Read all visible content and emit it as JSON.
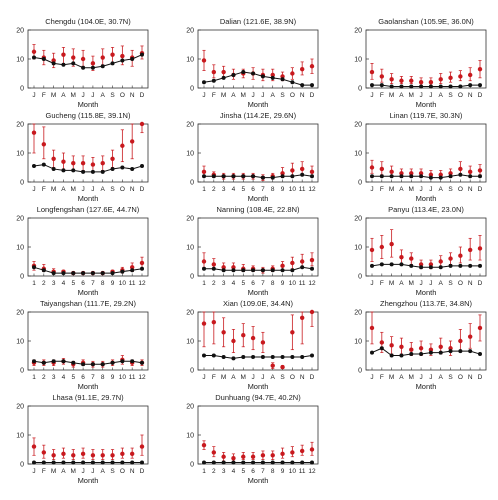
{
  "colors": {
    "red": "#c8191e",
    "black": "#111111",
    "axis": "#333333"
  },
  "chart_data": [
    {
      "type": "line",
      "title": "Chengdu (104.0E, 30.7N)",
      "xlabel": "Month",
      "ylabel": "",
      "ylim": [
        0,
        20
      ],
      "categories": [
        "J",
        "F",
        "M",
        "A",
        "M",
        "J",
        "J",
        "A",
        "S",
        "O",
        "N",
        "D"
      ],
      "series": [
        {
          "color": "#c8191e",
          "values": [
            12.5,
            10.5,
            9.5,
            11.5,
            10.5,
            10,
            8.5,
            10.5,
            11.5,
            11,
            10.5,
            12
          ],
          "err_low": [
            10,
            8,
            7,
            8.5,
            7.5,
            7.5,
            6,
            8,
            8.5,
            8,
            7.5,
            10
          ],
          "err_high": [
            15,
            13,
            12,
            14,
            13.5,
            13,
            11,
            13.5,
            14,
            14.5,
            13,
            14.5
          ]
        },
        {
          "color": "#111111",
          "values": [
            10.5,
            10,
            8.5,
            8,
            8.5,
            7,
            7,
            7.5,
            8.5,
            9.5,
            10,
            11.5
          ]
        }
      ]
    },
    {
      "type": "line",
      "title": "Dalian (121.6E, 38.9N)",
      "xlabel": "Month",
      "ylabel": "",
      "ylim": [
        0,
        20
      ],
      "categories": [
        "J",
        "F",
        "M",
        "A",
        "M",
        "J",
        "J",
        "A",
        "S",
        "O",
        "N",
        "D"
      ],
      "series": [
        {
          "color": "#c8191e",
          "values": [
            9.5,
            5.5,
            5.5,
            4.5,
            5,
            5,
            4.5,
            4.5,
            4,
            5,
            6.5,
            7.5
          ],
          "err_low": [
            6,
            3.5,
            3.5,
            3,
            3.5,
            3,
            2.5,
            2.5,
            2.5,
            3,
            4.5,
            5
          ],
          "err_high": [
            13,
            8,
            7.5,
            6.5,
            6.5,
            7,
            6.5,
            6.5,
            5.5,
            7,
            9,
            10
          ]
        },
        {
          "color": "#111111",
          "values": [
            2,
            2.5,
            3.5,
            4.5,
            5.5,
            5,
            4,
            3.5,
            3,
            2,
            1,
            1
          ]
        }
      ]
    },
    {
      "type": "line",
      "title": "Gaolanshan (105.9E, 36.0N)",
      "xlabel": "Month",
      "ylabel": "",
      "ylim": [
        0,
        20
      ],
      "categories": [
        "J",
        "F",
        "M",
        "A",
        "M",
        "J",
        "J",
        "A",
        "S",
        "O",
        "N",
        "D"
      ],
      "series": [
        {
          "color": "#c8191e",
          "values": [
            5.5,
            4,
            3,
            2.5,
            2.5,
            2,
            2,
            3,
            3.5,
            4,
            4.5,
            6.5
          ],
          "err_low": [
            3,
            2,
            1.5,
            1.5,
            1.5,
            1,
            1,
            1.5,
            2,
            2.5,
            2.5,
            3.5
          ],
          "err_high": [
            8.5,
            6.5,
            5,
            4,
            4,
            3.5,
            3.5,
            5,
            5.5,
            6,
            7,
            9.5
          ]
        },
        {
          "color": "#111111",
          "values": [
            1,
            1,
            0.5,
            0.5,
            0.5,
            0.5,
            0.5,
            0.5,
            0.5,
            0.5,
            1,
            1
          ]
        }
      ]
    },
    {
      "type": "line",
      "title": "Gucheng (115.8E, 39.1N)",
      "xlabel": "Month",
      "ylabel": "",
      "ylim": [
        0,
        20
      ],
      "categories": [
        "J",
        "F",
        "M",
        "A",
        "M",
        "J",
        "J",
        "A",
        "S",
        "O",
        "N",
        "D"
      ],
      "series": [
        {
          "color": "#c8191e",
          "values": [
            17,
            13,
            8,
            7,
            6.5,
            6.5,
            6,
            6.5,
            8,
            12.5,
            14,
            21
          ],
          "err_low": [
            10,
            8,
            5,
            4.5,
            4,
            4,
            3.5,
            4,
            5,
            7,
            8,
            17
          ],
          "err_high": [
            24,
            19,
            11,
            10,
            9,
            9,
            8.5,
            9,
            11,
            18,
            20,
            25
          ]
        },
        {
          "color": "#111111",
          "values": [
            5.5,
            6,
            4.5,
            4,
            4,
            3.5,
            3.5,
            3.5,
            4.5,
            5,
            4.5,
            5.5
          ]
        }
      ]
    },
    {
      "type": "line",
      "title": "Jinsha (114.2E, 29.6N)",
      "xlabel": "Month",
      "ylabel": "",
      "ylim": [
        0,
        20
      ],
      "categories": [
        "1",
        "2",
        "3",
        "4",
        "5",
        "6",
        "7",
        "8",
        "9",
        "10",
        "11",
        "12"
      ],
      "series": [
        {
          "color": "#c8191e",
          "values": [
            3.5,
            2.5,
            2,
            2,
            2,
            2,
            1.5,
            2,
            3,
            4,
            4.5,
            3.5
          ],
          "err_low": [
            2,
            1.5,
            1,
            1,
            1,
            1,
            0.5,
            1,
            1.5,
            2,
            2.5,
            2
          ],
          "err_high": [
            5.5,
            3.5,
            3,
            3,
            3,
            3,
            2.5,
            3,
            5,
            6.5,
            7,
            5.5
          ]
        },
        {
          "color": "#111111",
          "values": [
            2,
            2,
            2,
            2,
            2,
            2,
            1.5,
            1.5,
            2,
            2,
            2.5,
            2
          ]
        }
      ]
    },
    {
      "type": "line",
      "title": "Linan (119.7E, 30.3N)",
      "xlabel": "Month",
      "ylabel": "",
      "ylim": [
        0,
        20
      ],
      "categories": [
        "J",
        "F",
        "M",
        "A",
        "M",
        "J",
        "J",
        "A",
        "S",
        "O",
        "N",
        "D"
      ],
      "series": [
        {
          "color": "#c8191e",
          "values": [
            5,
            4.5,
            3.5,
            3,
            3,
            3,
            2.5,
            2.5,
            3,
            4.5,
            3.5,
            4
          ],
          "err_low": [
            3,
            2.5,
            2,
            1.5,
            1.5,
            1.5,
            1.5,
            1.5,
            1.5,
            2.5,
            2,
            2.5
          ],
          "err_high": [
            7.5,
            7,
            5.5,
            4.5,
            4.5,
            4.5,
            4,
            4,
            4.5,
            7,
            5.5,
            6
          ]
        },
        {
          "color": "#111111",
          "values": [
            2,
            2,
            2,
            2,
            2,
            2,
            1.5,
            1.5,
            2,
            2.5,
            2,
            2
          ]
        }
      ]
    },
    {
      "type": "line",
      "title": "Longfengshan (127.6E, 44.7N)",
      "xlabel": "Month",
      "ylabel": "",
      "ylim": [
        0,
        20
      ],
      "categories": [
        "1",
        "2",
        "3",
        "4",
        "5",
        "6",
        "7",
        "8",
        "9",
        "10",
        "11",
        "12"
      ],
      "series": [
        {
          "color": "#c8191e",
          "values": [
            3.5,
            2.5,
            1.5,
            1.5,
            1,
            1,
            1,
            1,
            1.5,
            2,
            3,
            4.5
          ],
          "err_low": [
            2,
            1.5,
            1,
            1,
            0.5,
            0.5,
            0.5,
            0.5,
            1,
            1,
            1.5,
            2.5
          ],
          "err_high": [
            5,
            4,
            2.5,
            2,
            1.5,
            1.5,
            1.5,
            1.5,
            2,
            3,
            4.5,
            6.5
          ]
        },
        {
          "color": "#111111",
          "values": [
            3,
            2,
            1,
            1,
            1,
            1,
            1,
            1,
            1,
            1.5,
            2,
            2.5
          ]
        }
      ]
    },
    {
      "type": "line",
      "title": "Nanning (108.4E, 22.8N)",
      "xlabel": "Month",
      "ylabel": "",
      "ylim": [
        0,
        20
      ],
      "categories": [
        "1",
        "2",
        "3",
        "4",
        "5",
        "6",
        "7",
        "8",
        "9",
        "10",
        "11",
        "12"
      ],
      "series": [
        {
          "color": "#c8191e",
          "values": [
            5,
            4,
            3,
            3,
            2.5,
            2.5,
            2,
            2.5,
            3.5,
            4.5,
            5,
            5.5
          ],
          "err_low": [
            3,
            2.5,
            2,
            2,
            1.5,
            1.5,
            1,
            1.5,
            2,
            2.5,
            3,
            3.5
          ],
          "err_high": [
            8,
            6,
            4.5,
            4.5,
            4,
            3.5,
            3,
            3.5,
            5,
            6.5,
            7.5,
            8
          ]
        },
        {
          "color": "#111111",
          "values": [
            2.5,
            2.5,
            2,
            2,
            2,
            2,
            2,
            2,
            2,
            2,
            3,
            2.5
          ]
        }
      ]
    },
    {
      "type": "line",
      "title": "Panyu (113.4E, 23.0N)",
      "xlabel": "Month",
      "ylabel": "",
      "ylim": [
        0,
        20
      ],
      "categories": [
        "J",
        "F",
        "M",
        "A",
        "M",
        "J",
        "J",
        "A",
        "S",
        "O",
        "N",
        "D"
      ],
      "series": [
        {
          "color": "#c8191e",
          "values": [
            9,
            10,
            11,
            6.5,
            6,
            4,
            4,
            5,
            6,
            7,
            9,
            9.5
          ],
          "err_low": [
            5,
            6,
            6.5,
            4,
            4,
            2.5,
            2.5,
            3,
            4,
            4.5,
            5.5,
            5.5
          ],
          "err_high": [
            13,
            14,
            16,
            9,
            8,
            5.5,
            5.5,
            7,
            8,
            10,
            13,
            14
          ]
        },
        {
          "color": "#111111",
          "values": [
            3.5,
            4,
            4,
            4,
            3.5,
            3,
            3,
            3,
            3.5,
            3.5,
            3.5,
            3.5
          ]
        }
      ]
    },
    {
      "type": "line",
      "title": "Taiyangshan (111.7E, 29.2N)",
      "xlabel": "Month",
      "ylabel": "",
      "ylim": [
        0,
        20
      ],
      "categories": [
        "1",
        "2",
        "3",
        "4",
        "5",
        "6",
        "7",
        "8",
        "9",
        "10",
        "11",
        "12"
      ],
      "series": [
        {
          "color": "#c8191e",
          "values": [
            2.5,
            2.5,
            2.5,
            3,
            2,
            2.5,
            2,
            2,
            2.5,
            3.5,
            2.5,
            2.5
          ],
          "err_low": [
            1.5,
            1.5,
            1.5,
            2,
            1,
            1.5,
            1,
            1,
            1.5,
            2,
            1.5,
            1.5
          ],
          "err_high": [
            3.5,
            3.5,
            3.5,
            4,
            3,
            3.5,
            3,
            3,
            3.5,
            5,
            3.5,
            3.5
          ]
        },
        {
          "color": "#111111",
          "values": [
            3,
            2.5,
            3,
            3,
            2.5,
            2,
            2,
            2,
            2.5,
            3,
            3,
            2.5
          ]
        }
      ]
    },
    {
      "type": "line",
      "title": "Xian (109.0E, 34.4N)",
      "xlabel": "Month",
      "ylabel": "",
      "ylim": [
        0,
        20
      ],
      "categories": [
        "J",
        "F",
        "M",
        "A",
        "M",
        "J",
        "J",
        "A",
        "S",
        "O",
        "N",
        "D"
      ],
      "series": [
        {
          "color": "#c8191e",
          "values": [
            16,
            16.5,
            13,
            10,
            12,
            11,
            9.5,
            1.5,
            1,
            13,
            18,
            23
          ],
          "err_low": [
            8,
            9,
            8,
            6,
            8,
            7,
            6,
            0.5,
            0.5,
            7,
            9,
            15
          ],
          "err_high": [
            24,
            24,
            18,
            14,
            16,
            15,
            13,
            2.5,
            1.5,
            19,
            25,
            25
          ]
        },
        {
          "color": "#111111",
          "values": [
            5,
            5,
            4.5,
            4,
            4.5,
            4.5,
            4.5,
            4.5,
            4.5,
            4.5,
            4.5,
            5
          ]
        }
      ]
    },
    {
      "type": "line",
      "title": "Zhengzhou (113.7E, 34.8N)",
      "xlabel": "Month",
      "ylabel": "",
      "ylim": [
        0,
        20
      ],
      "categories": [
        "J",
        "F",
        "M",
        "A",
        "M",
        "J",
        "J",
        "A",
        "S",
        "O",
        "N",
        "D"
      ],
      "series": [
        {
          "color": "#c8191e",
          "values": [
            14.5,
            9.5,
            8.5,
            8,
            7,
            7.5,
            7,
            8,
            7.5,
            10,
            11.5,
            14.5
          ],
          "err_low": [
            9,
            6,
            5.5,
            5.5,
            5,
            5,
            5,
            5.5,
            5,
            6.5,
            7.5,
            10
          ],
          "err_high": [
            20,
            13,
            11.5,
            11,
            9.5,
            10,
            9,
            11,
            10,
            14,
            16,
            19
          ]
        },
        {
          "color": "#111111",
          "values": [
            6,
            7.5,
            5,
            5,
            5.5,
            5.5,
            6,
            6,
            6.5,
            6.5,
            6.5,
            5.5
          ]
        }
      ]
    },
    {
      "type": "line",
      "title": "Lhasa (91.1E, 29.7N)",
      "xlabel": "Month",
      "ylabel": "",
      "ylim": [
        0,
        20
      ],
      "categories": [
        "J",
        "F",
        "M",
        "A",
        "M",
        "J",
        "J",
        "A",
        "S",
        "O",
        "N",
        "D"
      ],
      "series": [
        {
          "color": "#c8191e",
          "values": [
            6,
            4,
            3,
            3.5,
            3,
            3.5,
            3,
            3,
            3,
            3.5,
            3.5,
            6
          ],
          "err_low": [
            3,
            2,
            1.5,
            2,
            1.5,
            2,
            1.5,
            1.5,
            1.5,
            2,
            2,
            3
          ],
          "err_high": [
            9,
            6.5,
            5,
            5.5,
            5,
            5.5,
            5,
            5,
            5,
            5.5,
            5.5,
            10
          ]
        },
        {
          "color": "#111111",
          "values": [
            0.5,
            0.5,
            0.5,
            0.5,
            0.5,
            0.5,
            0.5,
            0.5,
            0.5,
            0.5,
            0.5,
            0.5
          ]
        }
      ]
    },
    {
      "type": "line",
      "title": "Dunhuang (94.7E, 40.2N)",
      "xlabel": "Month",
      "ylabel": "",
      "ylim": [
        0,
        20
      ],
      "categories": [
        "1",
        "2",
        "3",
        "4",
        "5",
        "6",
        "7",
        "8",
        "9",
        "10",
        "11",
        "12"
      ],
      "series": [
        {
          "color": "#c8191e",
          "values": [
            6.5,
            4,
            2.5,
            2,
            2.5,
            2.5,
            3,
            3,
            3.5,
            4,
            4.5,
            5
          ],
          "err_low": [
            5,
            2.5,
            1,
            1,
            1.5,
            1.5,
            1.5,
            1.5,
            2,
            2.5,
            3,
            3
          ],
          "err_high": [
            8,
            6,
            4,
            3.5,
            4,
            4,
            4.5,
            4.5,
            5.5,
            6,
            6.5,
            7.5
          ]
        },
        {
          "color": "#111111",
          "values": [
            0.5,
            0.5,
            0.5,
            0.5,
            0.5,
            0.5,
            0.5,
            0.5,
            0.5,
            0.5,
            0.5,
            0.5
          ]
        }
      ]
    }
  ]
}
